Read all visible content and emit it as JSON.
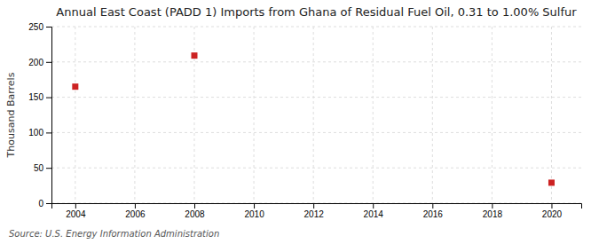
{
  "chart_data": {
    "type": "scatter",
    "title": "Annual East Coast (PADD 1) Imports from Ghana of Residual Fuel Oil, 0.31 to 1.00% Sulfur",
    "ylabel": "Thousand Barrels",
    "source": "Source: U.S. Energy Information Administration",
    "x": [
      2004,
      2008,
      2020
    ],
    "values": [
      165,
      209,
      29
    ],
    "color": "#cc2222",
    "marker": "square",
    "xlim": [
      2003.2,
      2021.0
    ],
    "ylim": [
      0,
      250
    ],
    "xticks": [
      2004,
      2006,
      2008,
      2010,
      2012,
      2014,
      2016,
      2018,
      2020
    ],
    "yticks": [
      0,
      50,
      100,
      150,
      200,
      250
    ],
    "grid": true
  }
}
